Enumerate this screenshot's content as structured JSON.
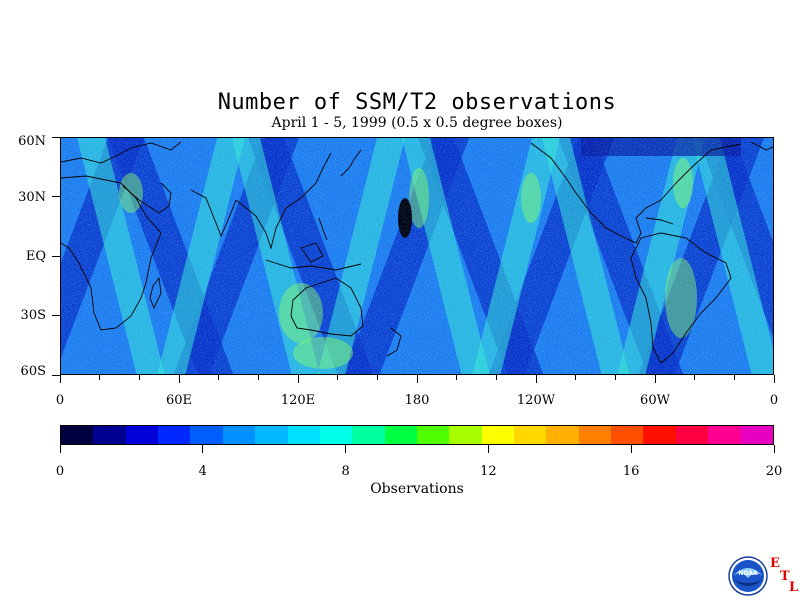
{
  "title": "Number of SSM/T2 observations",
  "subtitle": "April 1 - 5, 1999 (0.5 x 0.5 degree boxes)",
  "map": {
    "projection": "equirectangular",
    "lon_range": [
      0,
      360
    ],
    "lat_range": [
      -60,
      60
    ],
    "lat_labels": [
      "60N",
      "30N",
      "EQ",
      "30S",
      "60S"
    ],
    "lat_values": [
      60,
      30,
      0,
      -30,
      -60
    ],
    "lon_labels": [
      "0",
      "60E",
      "120E",
      "180",
      "120W",
      "60W",
      "0"
    ],
    "lon_values": [
      0,
      60,
      120,
      180,
      240,
      300,
      360
    ],
    "coastlines": true,
    "pattern": "diagonal satellite swaths with low counts between tracks and higher counts where swaths overlap"
  },
  "colorbar": {
    "min": 0,
    "max": 20,
    "tick_labels": [
      "0",
      "4",
      "8",
      "12",
      "16",
      "20"
    ],
    "tick_values": [
      0,
      4,
      8,
      12,
      16,
      20
    ],
    "label": "Observations",
    "colors": [
      "#000040",
      "#000090",
      "#0000d8",
      "#0028ff",
      "#0060ff",
      "#0090ff",
      "#00b8ff",
      "#00e0ff",
      "#00ffe8",
      "#00ffa0",
      "#00ff40",
      "#50ff00",
      "#a8ff00",
      "#ffff00",
      "#ffd800",
      "#ffb000",
      "#ff8000",
      "#ff5000",
      "#ff1000",
      "#ff0040",
      "#ff0090",
      "#e800c0"
    ]
  },
  "logo": {
    "name": "NOAA",
    "letters": [
      "E",
      "T",
      "L"
    ]
  }
}
